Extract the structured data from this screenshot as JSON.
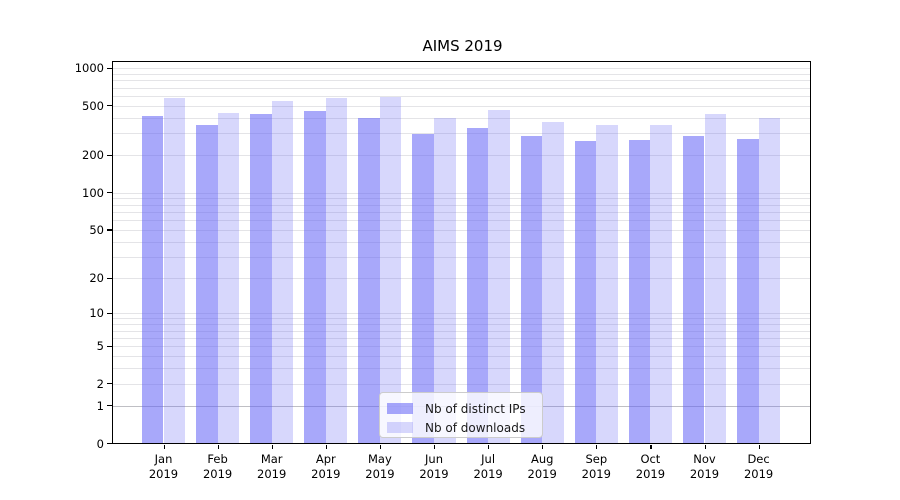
{
  "chart_data": {
    "type": "bar",
    "title": "AIMS 2019",
    "categories": [
      "Jan",
      "Feb",
      "Mar",
      "Apr",
      "May",
      "Jun",
      "Jul",
      "Aug",
      "Sep",
      "Oct",
      "Nov",
      "Dec"
    ],
    "category_year": "2019",
    "series": [
      {
        "name": "Nb of distinct IPs",
        "color": "rgba(96,96,245,0.55)",
        "values": [
          415,
          350,
          427,
          453,
          398,
          295,
          334,
          284,
          259,
          265,
          288,
          272
        ]
      },
      {
        "name": "Nb of downloads",
        "color": "rgba(96,96,245,0.25)",
        "values": [
          579,
          435,
          550,
          582,
          587,
          396,
          467,
          372,
          352,
          350,
          428,
          401
        ]
      }
    ],
    "y_axis": {
      "scale": "log1p",
      "ticks": [
        0,
        1,
        2,
        5,
        10,
        20,
        50,
        100,
        200,
        500,
        1000
      ],
      "ylim": [
        0,
        1130
      ],
      "grid": true,
      "grid_color": "#e4e4e7",
      "grid_color_baseline_1": "#bfbfc4"
    },
    "legend_position": "lower center"
  }
}
